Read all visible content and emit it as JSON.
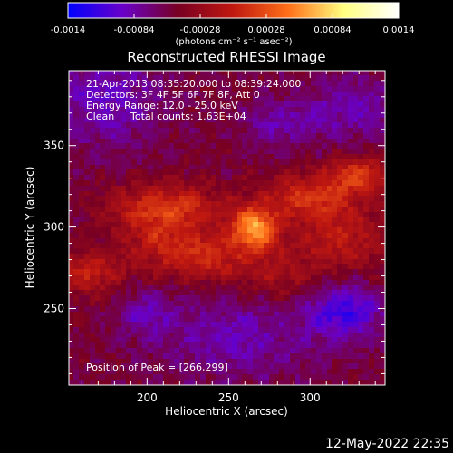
{
  "chart_data": {
    "type": "heatmap",
    "title": "Reconstructed RHESSI Image",
    "colorbar": {
      "ticks": [
        "-0.0014",
        "-0.00084",
        "-0.00028",
        "0.00028",
        "0.00084",
        "0.0014"
      ],
      "tick_values": [
        -0.0014,
        -0.00084,
        -0.00028,
        0.00028,
        0.00084,
        0.0014
      ],
      "range": [
        -0.0014,
        0.0014
      ],
      "label": "(photons cm⁻² s⁻¹ asec⁻²)",
      "colors": [
        "#0000ff",
        "#6a00c8",
        "#780022",
        "#c01810",
        "#ff7018",
        "#ffff80",
        "#ffffff"
      ]
    },
    "xlabel": "Heliocentric X (arcsec)",
    "ylabel": "Heliocentric Y (arcsec)",
    "xlim": [
      152,
      346
    ],
    "ylim": [
      203,
      396
    ],
    "xticks": [
      200,
      250,
      300
    ],
    "yticks": [
      250,
      300,
      350
    ],
    "annotations": {
      "time": "21-Apr-2013 08:35:20.000 to 08:39:24.000",
      "detectors": "Detectors: 3F 4F 5F 6F 7F 8F, Att 0",
      "energy": "Energy Range: 12.0 - 25.0 keV",
      "clean": "Clean",
      "counts": "Total counts: 1.63E+04",
      "peak": "Position of Peak = [266,299]"
    },
    "peak": {
      "x": 266,
      "y": 299
    },
    "blobs": [
      {
        "x": 266,
        "y": 299,
        "sx": 10,
        "sy": 9,
        "v": 0.0011
      },
      {
        "x": 212,
        "y": 312,
        "sx": 24,
        "sy": 10,
        "v": 0.00065
      },
      {
        "x": 300,
        "y": 318,
        "sx": 20,
        "sy": 10,
        "v": 0.0006
      },
      {
        "x": 320,
        "y": 292,
        "sx": 22,
        "sy": 14,
        "v": 0.00045
      },
      {
        "x": 240,
        "y": 280,
        "sx": 18,
        "sy": 10,
        "v": 0.0005
      },
      {
        "x": 165,
        "y": 272,
        "sx": 14,
        "sy": 10,
        "v": 0.0005
      },
      {
        "x": 210,
        "y": 290,
        "sx": 18,
        "sy": 12,
        "v": 0.00045
      },
      {
        "x": 330,
        "y": 332,
        "sx": 14,
        "sy": 8,
        "v": 0.0006
      },
      {
        "x": 280,
        "y": 270,
        "sx": 16,
        "sy": 12,
        "v": 0.0003
      },
      {
        "x": 175,
        "y": 380,
        "sx": 24,
        "sy": 22,
        "v": -0.0004
      },
      {
        "x": 325,
        "y": 372,
        "sx": 22,
        "sy": 14,
        "v": -0.00035
      },
      {
        "x": 255,
        "y": 232,
        "sx": 34,
        "sy": 18,
        "v": -0.00035
      },
      {
        "x": 322,
        "y": 248,
        "sx": 16,
        "sy": 12,
        "v": -0.0006
      },
      {
        "x": 200,
        "y": 247,
        "sx": 12,
        "sy": 10,
        "v": -0.0003
      },
      {
        "x": 280,
        "y": 362,
        "sx": 16,
        "sy": 10,
        "v": -0.0003
      }
    ]
  },
  "footer": {
    "timestamp": "12-May-2022 22:35"
  }
}
